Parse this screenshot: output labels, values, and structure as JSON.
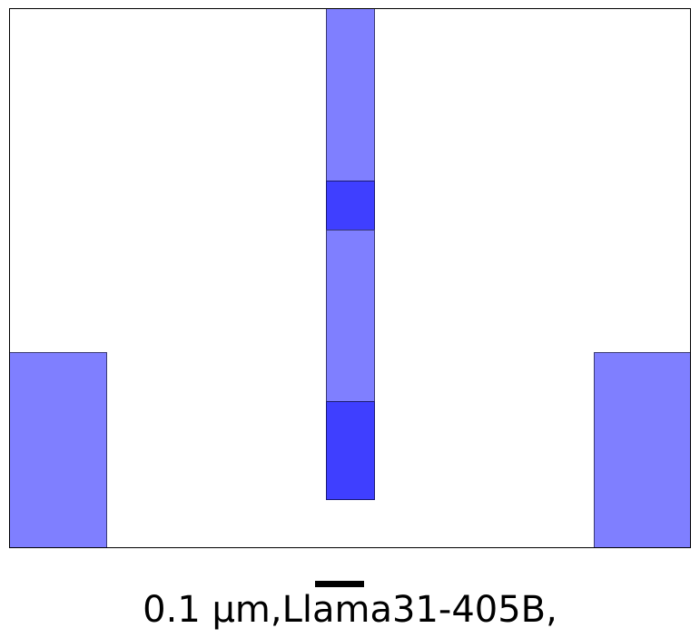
{
  "diagram": {
    "colors": {
      "light_region": "#7f7fff",
      "dark_region": "#3f3fff",
      "frame": "#000000",
      "background": "#ffffff"
    },
    "scale": {
      "label": "0.1 µm,Llama31-405B,"
    }
  }
}
